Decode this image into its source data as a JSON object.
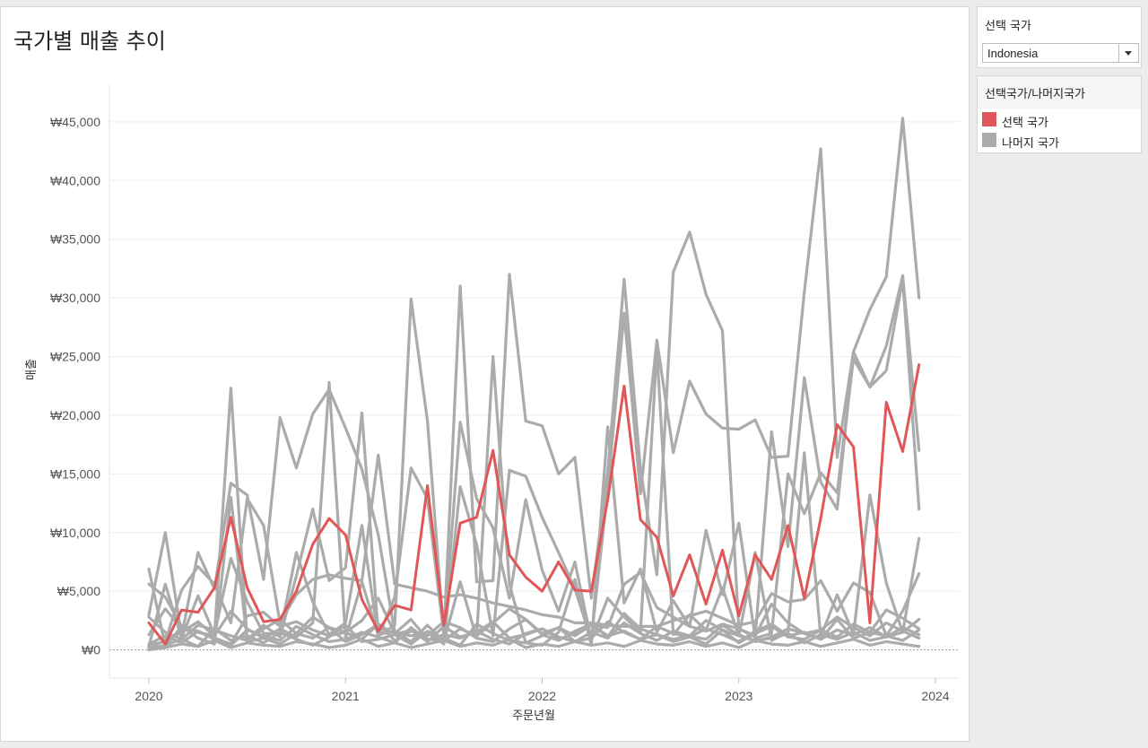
{
  "title": "국가별 매출 추이",
  "filter": {
    "label": "선택 국가",
    "selected": "Indonesia"
  },
  "legend": {
    "title": "선택국가/나머지국가",
    "items": [
      {
        "label": "선택 국가",
        "color": "#e15759"
      },
      {
        "label": "나머지 국가",
        "color": "#ababab"
      }
    ]
  },
  "chart_data": {
    "type": "line",
    "title": "국가별 매출 추이",
    "xlabel": "주문년월",
    "ylabel": "매출",
    "x_ticks": [
      "2020",
      "2021",
      "2022",
      "2023",
      "2024"
    ],
    "y_ticks": [
      "₩0",
      "₩5,000",
      "₩10,000",
      "₩15,000",
      "₩20,000",
      "₩25,000",
      "₩30,000",
      "₩35,000",
      "₩40,000",
      "₩45,000"
    ],
    "ylim": [
      -2400,
      48200
    ],
    "grid": true,
    "legend_position": "right",
    "x_months": [
      "2020-01",
      "2020-02",
      "2020-03",
      "2020-04",
      "2020-05",
      "2020-06",
      "2020-07",
      "2020-08",
      "2020-09",
      "2020-10",
      "2020-11",
      "2020-12",
      "2021-01",
      "2021-02",
      "2021-03",
      "2021-04",
      "2021-05",
      "2021-06",
      "2021-07",
      "2021-08",
      "2021-09",
      "2021-10",
      "2021-11",
      "2021-12",
      "2022-01",
      "2022-02",
      "2022-03",
      "2022-04",
      "2022-05",
      "2022-06",
      "2022-07",
      "2022-08",
      "2022-09",
      "2022-10",
      "2022-11",
      "2022-12",
      "2023-01",
      "2023-02",
      "2023-03",
      "2023-04",
      "2023-05",
      "2023-06",
      "2023-07",
      "2023-08",
      "2023-09",
      "2023-10",
      "2023-11",
      "2023-12"
    ],
    "series": [
      {
        "name": "선택 국가",
        "values": [
          2300,
          500,
          3400,
          3200,
          5300,
          11300,
          5300,
          2400,
          2600,
          5000,
          9000,
          11200,
          9800,
          4300,
          1600,
          3800,
          3400,
          14000,
          2100,
          10800,
          11300,
          17000,
          8100,
          6200,
          5000,
          7500,
          5100,
          5000,
          12800,
          22500,
          11100,
          9600,
          4600,
          8100,
          3900,
          8500,
          2900,
          8100,
          6000,
          10600,
          4400,
          11200,
          19200,
          17300,
          2300,
          21100,
          16900,
          24300
        ]
      },
      {
        "values": [
          6900,
          300,
          2000,
          1500,
          1200,
          22300,
          700,
          1000,
          1800,
          1100,
          2300,
          22800,
          1000,
          5800,
          1200,
          2100,
          29900,
          19500,
          1200,
          31000,
          5800,
          5900,
          32000,
          19500,
          19100,
          15000,
          16400,
          4400,
          15200,
          31600,
          15400,
          6400,
          32200,
          35600,
          30300,
          27200,
          1800,
          1100,
          18600,
          8800,
          23200,
          14300,
          12000,
          25400,
          22400,
          25900,
          31900,
          17000
        ]
      },
      {
        "values": [
          3000,
          10000,
          1200,
          8300,
          5200,
          14200,
          13200,
          6000,
          19800,
          15500,
          20100,
          22200,
          18900,
          15400,
          9800,
          1500,
          1200,
          1500,
          500,
          13900,
          9000,
          1200,
          15300,
          14800,
          11300,
          8300,
          5200,
          900,
          13700,
          28700,
          13300,
          26400,
          16800,
          22900,
          20100,
          18900,
          18800,
          19600,
          16400,
          16500,
          30500,
          42700,
          16400,
          25400,
          29000,
          31800,
          45300,
          30000
        ]
      },
      {
        "values": [
          5600,
          4500,
          2000,
          1000,
          500,
          13000,
          900,
          2100,
          1100,
          6300,
          12000,
          5900,
          7000,
          20200,
          1300,
          1600,
          700,
          2100,
          700,
          5800,
          1000,
          25000,
          5600,
          600,
          400,
          1500,
          6000,
          400,
          19000,
          4000,
          6900,
          1500,
          4200,
          2000,
          10200,
          4700,
          10800,
          1000,
          1400,
          15000,
          11600,
          15100,
          13400,
          24800,
          22400,
          23800,
          31600,
          12000
        ]
      },
      {
        "values": [
          300,
          5600,
          1000,
          4600,
          1300,
          7800,
          4100,
          1400,
          1400,
          8300,
          4100,
          1300,
          2300,
          10600,
          1100,
          4500,
          15500,
          12900,
          1200,
          19400,
          12900,
          10400,
          4400,
          12800,
          6800,
          3300,
          7500,
          800,
          4400,
          2800,
          1500,
          25600,
          1300,
          3000,
          1700,
          5300,
          1200,
          8300,
          800,
          1500,
          16800,
          1100,
          4700,
          1300,
          13200,
          5700,
          1500,
          9500
        ]
      },
      {
        "values": [
          400,
          700,
          5100,
          7100,
          5600,
          2300,
          12900,
          10600,
          2300,
          4700,
          6000,
          6400,
          6100,
          5900,
          16600,
          5600,
          5300,
          5000,
          4500,
          4700,
          4400,
          4000,
          3700,
          3400,
          3000,
          2800,
          2300,
          2300,
          2100,
          2000,
          2000,
          2000,
          2500,
          2900,
          3300,
          2700,
          2100,
          2400,
          4800,
          4100,
          4300,
          5900,
          3300,
          5700,
          4900,
          1200,
          3300,
          6500
        ]
      },
      {
        "values": [
          1300,
          3500,
          1800,
          1600,
          1000,
          500,
          2900,
          3200,
          2000,
          2400,
          1700,
          1200,
          1500,
          2500,
          4400,
          1400,
          2600,
          900,
          800,
          1800,
          1200,
          2300,
          3500,
          2600,
          1400,
          1900,
          1200,
          2100,
          1900,
          5600,
          6600,
          3600,
          2800,
          2000,
          1600,
          2200,
          1800,
          1200,
          3900,
          2300,
          1400,
          1700,
          1100,
          2200,
          1500,
          3400,
          2700,
          1800
        ]
      },
      {
        "values": [
          200,
          800,
          1500,
          2400,
          1200,
          3300,
          1800,
          1000,
          500,
          1400,
          2800,
          1900,
          700,
          1300,
          2200,
          800,
          1600,
          1200,
          2400,
          1900,
          1000,
          700,
          1800,
          2600,
          1300,
          800,
          1600,
          2200,
          1100,
          3100,
          1800,
          1300,
          900,
          1200,
          2500,
          1700,
          600,
          1400,
          2000,
          1100,
          900,
          1700,
          2800,
          1900,
          1200,
          2300,
          1600,
          1000
        ]
      },
      {
        "values": [
          100,
          400,
          900,
          300,
          1800,
          800,
          1200,
          600,
          1500,
          900,
          400,
          1100,
          2100,
          700,
          900,
          1300,
          500,
          1600,
          1000,
          400,
          2200,
          1400,
          800,
          600,
          1200,
          1900,
          700,
          1000,
          2400,
          1500,
          900,
          1300,
          700,
          1100,
          500,
          1700,
          1200,
          800,
          1000,
          1400,
          600,
          1300,
          900,
          1500,
          800,
          1100,
          1900,
          1300
        ]
      },
      {
        "values": [
          500,
          1200,
          600,
          1600,
          900,
          400,
          1700,
          1200,
          800,
          2000,
          1300,
          700,
          900,
          1500,
          1100,
          600,
          1900,
          800,
          1300,
          1000,
          1600,
          900,
          500,
          1400,
          1800,
          1100,
          700,
          1500,
          1000,
          2300,
          1400,
          800,
          1600,
          1200,
          900,
          2100,
          1300,
          700,
          1100,
          1800,
          1400,
          900,
          2600,
          1000,
          1500,
          1200,
          800,
          1700
        ]
      },
      {
        "values": [
          0,
          200,
          500,
          300,
          800,
          200,
          600,
          400,
          300,
          700,
          500,
          200,
          400,
          900,
          300,
          600,
          200,
          500,
          800,
          300,
          600,
          400,
          900,
          200,
          500,
          300,
          700,
          400,
          600,
          300,
          800,
          500,
          400,
          700,
          300,
          600,
          200,
          800,
          500,
          400,
          700,
          300,
          600,
          900,
          400,
          700,
          500,
          300
        ]
      },
      {
        "values": [
          2800,
          1500,
          900,
          2100,
          1700,
          1200,
          800,
          1800,
          2600,
          1400,
          1000,
          1900,
          1500,
          900,
          2200,
          1300,
          1700,
          700,
          2000,
          1100,
          1500,
          2400,
          1000,
          1300,
          1800,
          900,
          1400,
          2100,
          1200,
          1600,
          900,
          2000,
          1400,
          1100,
          1800,
          1300,
          700,
          1600,
          2200,
          1200,
          1500,
          900,
          1700,
          1300,
          1900,
          1100,
          1500,
          2600
        ]
      }
    ]
  }
}
